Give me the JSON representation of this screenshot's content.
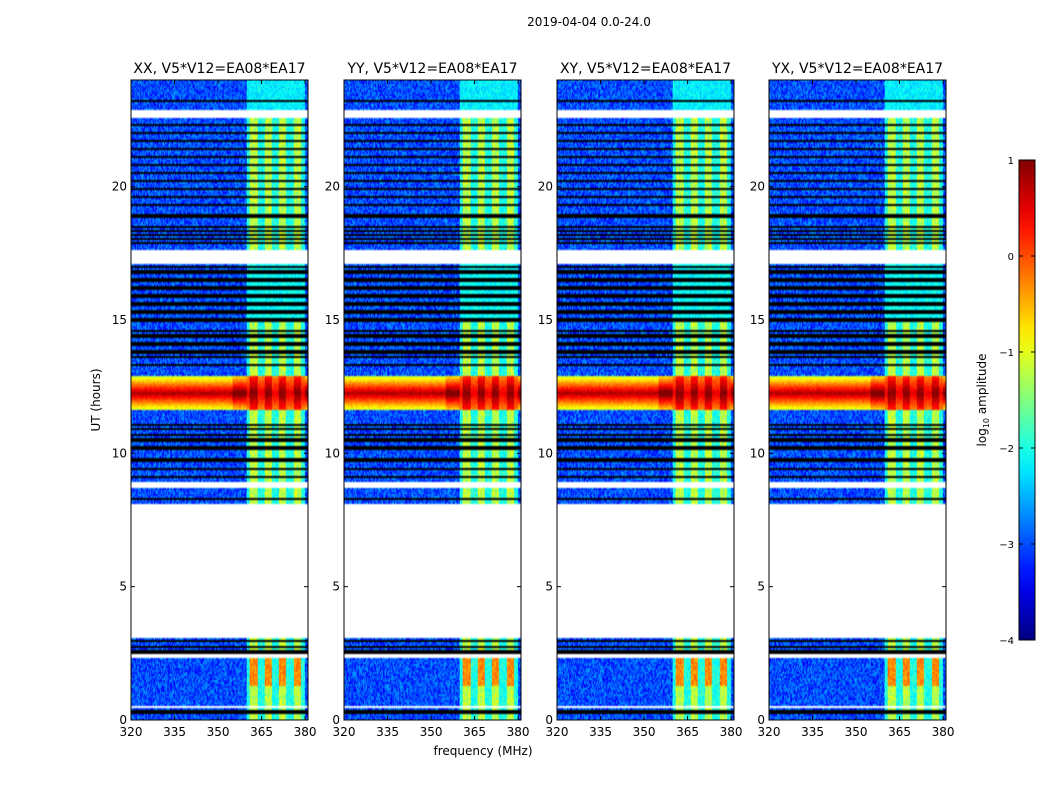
{
  "chart_data": {
    "type": "heatmap",
    "suptitle": "2019-04-04 0.0-24.0",
    "xlabel": "frequency (MHz)",
    "ylabel": "UT (hours)",
    "xlim": [
      320,
      381
    ],
    "ylim": [
      0,
      24
    ],
    "x_ticks": [
      320,
      335,
      350,
      365,
      380
    ],
    "y_ticks": [
      0,
      5,
      10,
      15,
      20
    ],
    "colorbar": {
      "label": "log",
      "label_sub": "10",
      "label_tail": " amplitude",
      "range": [
        -4,
        1
      ],
      "ticks": [
        -4,
        -3,
        -2,
        -1,
        0,
        1
      ],
      "colormap": "jet"
    },
    "panels": [
      {
        "title": "XX, V5*V12=EA08*EA17"
      },
      {
        "title": "YY, V5*V12=EA08*EA17"
      },
      {
        "title": "XY, V5*V12=EA08*EA17"
      },
      {
        "title": "YX, V5*V12=EA08*EA17"
      }
    ],
    "features": {
      "noise_floor_log_amp": -3.0,
      "signal_band_mhz": [
        360,
        380
      ],
      "signal_subbands_mhz": [
        [
          361,
          363.5
        ],
        [
          366,
          368.5
        ],
        [
          371,
          373.5
        ],
        [
          376,
          378.5
        ]
      ],
      "signal_log_amp": -1.2,
      "strong_event_ut": [
        11.6,
        12.9
      ],
      "strong_event_peak_log_amp": 0.9,
      "data_gaps_ut": [
        [
          0.45,
          0.55
        ],
        [
          2.3,
          2.45
        ],
        [
          3.05,
          8.1
        ],
        [
          8.7,
          8.95
        ],
        [
          17.1,
          17.6
        ],
        [
          22.6,
          22.85
        ]
      ],
      "flagged_lines_ut": [
        0.3,
        2.55,
        2.75,
        2.95,
        8.3,
        9.1,
        9.4,
        9.75,
        10.2,
        10.5,
        10.7,
        10.9,
        11.05,
        13.3,
        13.6,
        13.8,
        14.1,
        14.4,
        14.6,
        15.0,
        15.3,
        15.6,
        15.9,
        16.2,
        16.5,
        16.8,
        17.0,
        17.9,
        18.05,
        18.2,
        18.35,
        18.5,
        18.9,
        19.3,
        19.6,
        19.9,
        20.2,
        20.5,
        20.8,
        21.1,
        21.4,
        21.7,
        22.0,
        22.3,
        23.2
      ]
    }
  }
}
